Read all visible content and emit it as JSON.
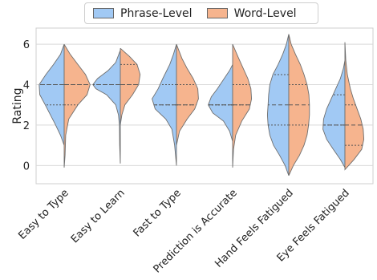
{
  "colors": {
    "phrase": "#a1c9f4",
    "word": "#f6b48e",
    "outline": "#6e6e6e",
    "grid": "#d9d9d9"
  },
  "legend": [
    {
      "label": "Phrase-Level",
      "color": "#a1c9f4"
    },
    {
      "label": "Word-Level",
      "color": "#f6b48e"
    }
  ],
  "chart_data": {
    "type": "violin",
    "ylabel": "Rating",
    "ylim": [
      -0.9,
      6.8
    ],
    "yticks": [
      0,
      2,
      4,
      6
    ],
    "grid": true,
    "legend_position": "top-center",
    "categories": [
      "Easy to Type",
      "Easy to Learn",
      "Fast to Type",
      "Prediction is Accurate",
      "Hand Feels Fatigued",
      "Eye Feels Fatigued"
    ],
    "series": [
      {
        "name": "Phrase-Level",
        "side": "left",
        "violins": [
          {
            "range": [
              1.0,
              6.0
            ],
            "quartiles": [
              3.0,
              4.0,
              4.0
            ],
            "density": [
              [
                1.0,
                0
              ],
              [
                1.5,
                0.12
              ],
              [
                2.0,
                0.28
              ],
              [
                2.5,
                0.45
              ],
              [
                3.0,
                0.62
              ],
              [
                3.5,
                0.8
              ],
              [
                4.0,
                0.82
              ],
              [
                4.5,
                0.6
              ],
              [
                5.0,
                0.35
              ],
              [
                5.5,
                0.12
              ],
              [
                6.0,
                0
              ]
            ]
          },
          {
            "range": [
              0.1,
              5.7
            ],
            "quartiles": [
              4.0,
              4.0,
              4.0
            ],
            "density": [
              [
                0.1,
                0
              ],
              [
                1.0,
                0.02
              ],
              [
                2.0,
                0.03
              ],
              [
                2.5,
                0.06
              ],
              [
                3.0,
                0.15
              ],
              [
                3.5,
                0.45
              ],
              [
                3.8,
                0.8
              ],
              [
                4.0,
                0.9
              ],
              [
                4.3,
                0.75
              ],
              [
                4.7,
                0.4
              ],
              [
                5.1,
                0.15
              ],
              [
                5.7,
                0
              ]
            ]
          },
          {
            "range": [
              0.0,
              6.0
            ],
            "quartiles": [
              3.0,
              3.0,
              4.0
            ],
            "density": [
              [
                0.0,
                0
              ],
              [
                1.0,
                0.06
              ],
              [
                1.8,
                0.15
              ],
              [
                2.3,
                0.35
              ],
              [
                2.8,
                0.7
              ],
              [
                3.3,
                0.8
              ],
              [
                3.8,
                0.6
              ],
              [
                4.3,
                0.45
              ],
              [
                5.0,
                0.22
              ],
              [
                5.5,
                0.1
              ],
              [
                6.0,
                0
              ]
            ]
          },
          {
            "range": [
              1.2,
              5.0
            ],
            "quartiles": [
              3.0,
              3.0,
              3.0
            ],
            "density": [
              [
                1.2,
                0
              ],
              [
                1.7,
                0.1
              ],
              [
                2.2,
                0.3
              ],
              [
                2.6,
                0.65
              ],
              [
                3.0,
                0.8
              ],
              [
                3.4,
                0.7
              ],
              [
                3.8,
                0.5
              ],
              [
                4.3,
                0.28
              ],
              [
                4.7,
                0.1
              ],
              [
                5.0,
                0
              ]
            ]
          },
          {
            "range": [
              -0.5,
              6.5
            ],
            "quartiles": [
              2.0,
              3.0,
              4.5
            ],
            "density": [
              [
                -0.5,
                0
              ],
              [
                0.0,
                0.12
              ],
              [
                0.5,
                0.3
              ],
              [
                1.0,
                0.5
              ],
              [
                1.5,
                0.62
              ],
              [
                2.0,
                0.68
              ],
              [
                2.5,
                0.7
              ],
              [
                3.0,
                0.68
              ],
              [
                3.5,
                0.66
              ],
              [
                4.0,
                0.62
              ],
              [
                4.5,
                0.52
              ],
              [
                5.0,
                0.35
              ],
              [
                5.5,
                0.2
              ],
              [
                6.0,
                0.08
              ],
              [
                6.5,
                0
              ]
            ]
          },
          {
            "range": [
              -0.1,
              5.2
            ],
            "quartiles": [
              2.0,
              2.0,
              3.5
            ],
            "density": [
              [
                -0.1,
                0
              ],
              [
                0.3,
                0.15
              ],
              [
                0.8,
                0.38
              ],
              [
                1.3,
                0.6
              ],
              [
                1.8,
                0.72
              ],
              [
                2.3,
                0.7
              ],
              [
                2.8,
                0.6
              ],
              [
                3.3,
                0.45
              ],
              [
                3.8,
                0.3
              ],
              [
                4.3,
                0.15
              ],
              [
                4.8,
                0.05
              ],
              [
                5.2,
                0
              ]
            ]
          }
        ]
      },
      {
        "name": "Word-Level",
        "side": "right",
        "violins": [
          {
            "range": [
              -0.1,
              6.0
            ],
            "quartiles": [
              3.0,
              4.0,
              4.0
            ],
            "density": [
              [
                -0.1,
                0
              ],
              [
                0.5,
                0.03
              ],
              [
                1.5,
                0.05
              ],
              [
                2.3,
                0.15
              ],
              [
                3.0,
                0.45
              ],
              [
                3.5,
                0.75
              ],
              [
                4.0,
                0.85
              ],
              [
                4.5,
                0.7
              ],
              [
                5.0,
                0.45
              ],
              [
                5.5,
                0.2
              ],
              [
                6.0,
                0
              ]
            ]
          },
          {
            "range": [
              2.0,
              5.8
            ],
            "quartiles": [
              4.0,
              4.0,
              5.0
            ],
            "density": [
              [
                2.0,
                0
              ],
              [
                2.5,
                0.05
              ],
              [
                3.0,
                0.15
              ],
              [
                3.5,
                0.4
              ],
              [
                4.0,
                0.6
              ],
              [
                4.5,
                0.65
              ],
              [
                5.0,
                0.55
              ],
              [
                5.4,
                0.3
              ],
              [
                5.8,
                0
              ]
            ]
          },
          {
            "range": [
              1.0,
              6.0
            ],
            "quartiles": [
              3.0,
              3.0,
              4.0
            ],
            "density": [
              [
                1.0,
                0
              ],
              [
                1.7,
                0.1
              ],
              [
                2.3,
                0.35
              ],
              [
                2.8,
                0.6
              ],
              [
                3.3,
                0.72
              ],
              [
                3.8,
                0.7
              ],
              [
                4.3,
                0.55
              ],
              [
                4.8,
                0.35
              ],
              [
                5.3,
                0.18
              ],
              [
                6.0,
                0
              ]
            ]
          },
          {
            "range": [
              -0.1,
              6.0
            ],
            "quartiles": [
              3.0,
              3.0,
              4.0
            ],
            "density": [
              [
                -0.1,
                0
              ],
              [
                0.8,
                0.03
              ],
              [
                1.5,
                0.1
              ],
              [
                2.2,
                0.3
              ],
              [
                2.8,
                0.55
              ],
              [
                3.3,
                0.62
              ],
              [
                3.8,
                0.6
              ],
              [
                4.3,
                0.5
              ],
              [
                4.8,
                0.35
              ],
              [
                5.3,
                0.2
              ],
              [
                6.0,
                0
              ]
            ]
          },
          {
            "range": [
              -0.5,
              6.5
            ],
            "quartiles": [
              2.0,
              3.0,
              4.0
            ],
            "density": [
              [
                -0.5,
                0
              ],
              [
                0.0,
                0.15
              ],
              [
                0.5,
                0.35
              ],
              [
                1.0,
                0.5
              ],
              [
                1.5,
                0.6
              ],
              [
                2.0,
                0.65
              ],
              [
                2.5,
                0.68
              ],
              [
                3.0,
                0.68
              ],
              [
                3.5,
                0.66
              ],
              [
                4.0,
                0.6
              ],
              [
                4.5,
                0.5
              ],
              [
                5.0,
                0.38
              ],
              [
                5.5,
                0.22
              ],
              [
                6.0,
                0.08
              ],
              [
                6.5,
                0
              ]
            ]
          },
          {
            "range": [
              -0.2,
              6.1
            ],
            "quartiles": [
              1.0,
              2.0,
              3.0
            ],
            "density": [
              [
                -0.2,
                0
              ],
              [
                0.3,
                0.3
              ],
              [
                0.8,
                0.55
              ],
              [
                1.3,
                0.62
              ],
              [
                1.8,
                0.6
              ],
              [
                2.3,
                0.52
              ],
              [
                2.8,
                0.4
              ],
              [
                3.3,
                0.28
              ],
              [
                3.8,
                0.18
              ],
              [
                4.5,
                0.08
              ],
              [
                5.2,
                0.03
              ],
              [
                6.1,
                0
              ]
            ]
          }
        ]
      }
    ]
  }
}
